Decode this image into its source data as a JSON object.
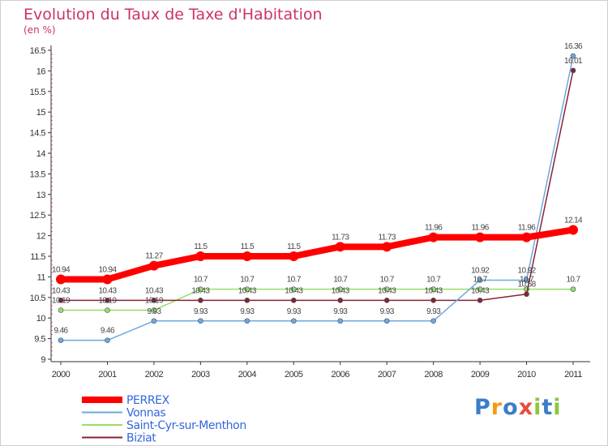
{
  "chart_data": {
    "type": "line",
    "title": "Evolution du Taux de Taxe d'Habitation",
    "subtitle": "(en %)",
    "x": [
      "2000",
      "2001",
      "2002",
      "2003",
      "2004",
      "2005",
      "2006",
      "2007",
      "2008",
      "2009",
      "2010",
      "2011"
    ],
    "ylim": [
      9,
      16.5
    ],
    "yticks": [
      "9",
      "9.5",
      "10",
      "10.5",
      "11",
      "11.5",
      "12",
      "12.5",
      "13",
      "13.5",
      "14",
      "14.5",
      "15",
      "15.5",
      "16",
      "16.5"
    ],
    "grid": false,
    "legend_position": "bottom-left",
    "series": [
      {
        "name": "PERREX",
        "color": "#ff0000",
        "values": [
          10.94,
          10.94,
          11.27,
          11.5,
          11.5,
          11.5,
          11.73,
          11.73,
          11.96,
          11.96,
          11.96,
          12.14
        ],
        "labels": [
          "10.94",
          "10.94",
          "11.27",
          "11.5",
          "11.5",
          "11.5",
          "11.73",
          "11.73",
          "11.96",
          "11.96",
          "11.96",
          "12.14"
        ]
      },
      {
        "name": "Vonnas",
        "color": "#6fa8dc",
        "values": [
          9.46,
          9.46,
          9.93,
          9.93,
          9.93,
          9.93,
          9.93,
          9.93,
          9.93,
          10.92,
          10.92,
          16.36
        ],
        "labels": [
          "9.46",
          "9.46",
          "9.93",
          "9.93",
          "9.93",
          "9.93",
          "9.93",
          "9.93",
          "9.93",
          "10.92",
          "10.92",
          "16.36"
        ]
      },
      {
        "name": "Saint-Cyr-sur-Menthon",
        "color": "#99dd66",
        "values": [
          10.19,
          10.19,
          10.19,
          10.7,
          10.7,
          10.7,
          10.7,
          10.7,
          10.7,
          10.7,
          10.7,
          10.7
        ],
        "labels": [
          "10.19",
          "10.19",
          "10.19",
          "10.7",
          "10.7",
          "10.7",
          "10.7",
          "10.7",
          "10.7",
          "10.7",
          "10.7",
          "10.7"
        ]
      },
      {
        "name": "Biziat",
        "color": "#882233",
        "values": [
          10.43,
          10.43,
          10.43,
          10.43,
          10.43,
          10.43,
          10.43,
          10.43,
          10.43,
          10.43,
          10.58,
          16.01
        ],
        "labels": [
          "10.43",
          "10.43",
          "10.43",
          "10.43",
          "10.43",
          "10.43",
          "10.43",
          "10.43",
          "10.43",
          "10.43",
          "10.58",
          "16.01"
        ]
      }
    ]
  },
  "logo": {
    "letters": [
      {
        "ch": "P",
        "color": "#3a7dc9"
      },
      {
        "ch": "r",
        "color": "#f39c12"
      },
      {
        "ch": "o",
        "color": "#3a7dc9"
      },
      {
        "ch": "x",
        "color": "#e74c3c"
      },
      {
        "ch": "i",
        "color": "#8cc63f"
      },
      {
        "ch": "t",
        "color": "#3a7dc9"
      },
      {
        "ch": "i",
        "color": "#8cc63f"
      }
    ]
  }
}
